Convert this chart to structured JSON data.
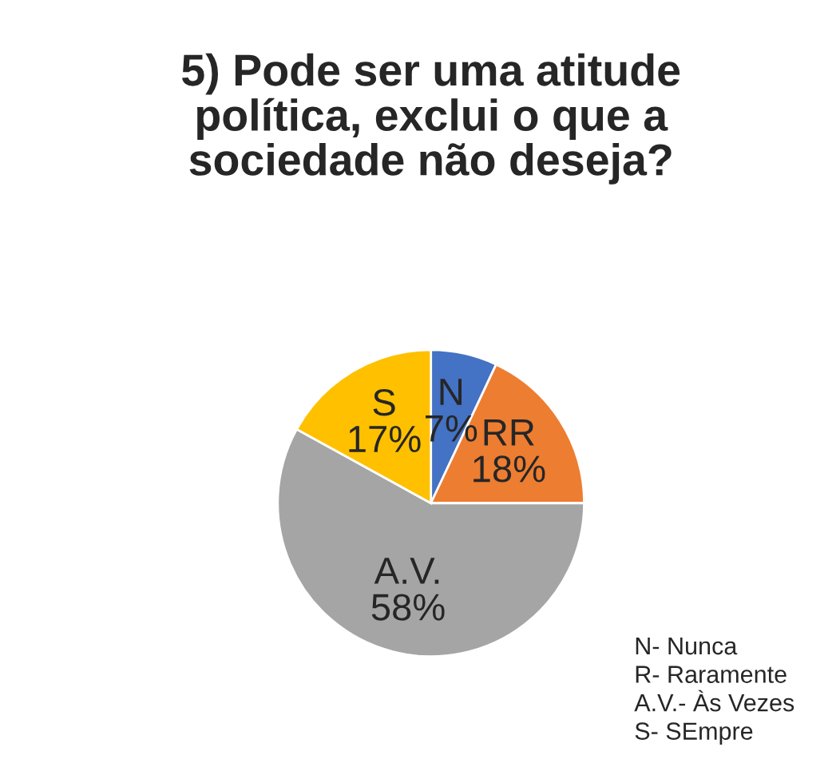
{
  "chart_data": {
    "type": "pie",
    "title": "5) Pode ser uma atitude política, exclui o que a sociedade não deseja?",
    "categories": [
      "N",
      "RR",
      "A.V.",
      "S"
    ],
    "values": [
      7,
      18,
      58,
      17
    ],
    "value_labels": [
      "7%",
      "18%",
      "58%",
      "17%"
    ],
    "colors": [
      "#4472c4",
      "#ed7d31",
      "#a5a5a5",
      "#ffc000"
    ],
    "annotations": [
      "N- Nunca",
      "R- Raramente",
      "A.V.- Às Vezes",
      "S- SEmpre"
    ],
    "legend": false
  }
}
